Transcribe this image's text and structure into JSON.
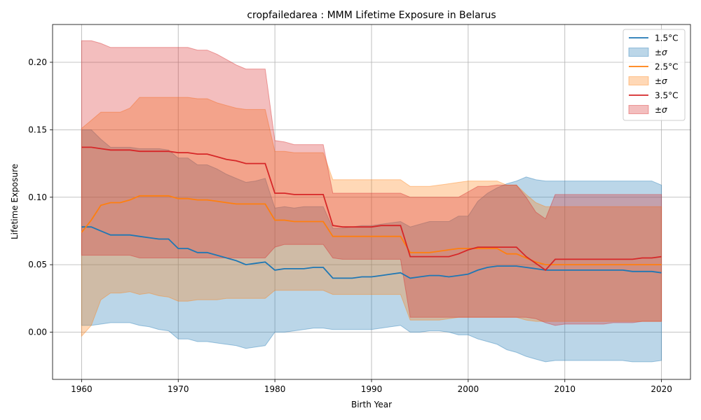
{
  "chart_data": {
    "type": "line",
    "title": "cropfailedarea : MMM Lifetime Exposure in Belarus",
    "xlabel": "Birth Year",
    "ylabel": "Lifetime Exposure",
    "xlim": [
      1957,
      2023
    ],
    "ylim": [
      -0.035,
      0.228
    ],
    "xticks": [
      1960,
      1970,
      1980,
      1990,
      2000,
      2010,
      2020
    ],
    "yticks": [
      0.0,
      0.05,
      0.1,
      0.15,
      0.2
    ],
    "ytick_labels": [
      "0.00",
      "0.05",
      "0.10",
      "0.15",
      "0.20"
    ],
    "grid": true,
    "legend_position": "top-right",
    "x": [
      1960,
      1961,
      1962,
      1963,
      1964,
      1965,
      1966,
      1967,
      1968,
      1969,
      1970,
      1971,
      1972,
      1973,
      1974,
      1975,
      1976,
      1977,
      1978,
      1979,
      1980,
      1981,
      1982,
      1983,
      1984,
      1985,
      1986,
      1987,
      1988,
      1989,
      1990,
      1991,
      1992,
      1993,
      1994,
      1995,
      1996,
      1997,
      1998,
      1999,
      2000,
      2001,
      2002,
      2003,
      2004,
      2005,
      2006,
      2007,
      2008,
      2009,
      2010,
      2011,
      2012,
      2013,
      2014,
      2015,
      2016,
      2017,
      2018,
      2019,
      2020
    ],
    "series": [
      {
        "name": "1.5°C",
        "band_label": "±σ",
        "color": "#1f77b4",
        "values": [
          0.078,
          0.078,
          0.075,
          0.072,
          0.072,
          0.072,
          0.071,
          0.07,
          0.069,
          0.069,
          0.062,
          0.062,
          0.059,
          0.059,
          0.057,
          0.055,
          0.053,
          0.05,
          0.051,
          0.052,
          0.046,
          0.047,
          0.047,
          0.047,
          0.048,
          0.048,
          0.04,
          0.04,
          0.04,
          0.041,
          0.041,
          0.042,
          0.043,
          0.044,
          0.04,
          0.041,
          0.042,
          0.042,
          0.041,
          0.042,
          0.043,
          0.046,
          0.048,
          0.049,
          0.049,
          0.049,
          0.048,
          0.047,
          0.046,
          0.046,
          0.046,
          0.046,
          0.046,
          0.046,
          0.046,
          0.046,
          0.046,
          0.045,
          0.045,
          0.045,
          0.044
        ],
        "lower": [
          0.005,
          0.005,
          0.006,
          0.007,
          0.007,
          0.007,
          0.005,
          0.004,
          0.002,
          0.001,
          -0.005,
          -0.005,
          -0.007,
          -0.007,
          -0.008,
          -0.009,
          -0.01,
          -0.012,
          -0.011,
          -0.01,
          0.0,
          0.0,
          0.001,
          0.002,
          0.003,
          0.003,
          0.002,
          0.002,
          0.002,
          0.002,
          0.002,
          0.003,
          0.004,
          0.005,
          0.0,
          0.0,
          0.001,
          0.001,
          0.0,
          -0.002,
          -0.002,
          -0.005,
          -0.007,
          -0.009,
          -0.013,
          -0.015,
          -0.018,
          -0.02,
          -0.022,
          -0.021,
          -0.021,
          -0.021,
          -0.021,
          -0.021,
          -0.021,
          -0.021,
          -0.021,
          -0.022,
          -0.022,
          -0.022,
          -0.021
        ],
        "upper": [
          0.15,
          0.15,
          0.143,
          0.137,
          0.137,
          0.137,
          0.136,
          0.136,
          0.136,
          0.135,
          0.129,
          0.129,
          0.124,
          0.124,
          0.121,
          0.117,
          0.114,
          0.111,
          0.112,
          0.114,
          0.092,
          0.093,
          0.092,
          0.093,
          0.093,
          0.093,
          0.077,
          0.077,
          0.078,
          0.079,
          0.079,
          0.08,
          0.081,
          0.082,
          0.078,
          0.08,
          0.082,
          0.082,
          0.082,
          0.086,
          0.086,
          0.097,
          0.103,
          0.107,
          0.11,
          0.112,
          0.115,
          0.113,
          0.112,
          0.112,
          0.112,
          0.112,
          0.112,
          0.112,
          0.112,
          0.112,
          0.112,
          0.112,
          0.112,
          0.112,
          0.109
        ]
      },
      {
        "name": "2.5°C",
        "band_label": "±σ",
        "color": "#ff7f0e",
        "values": [
          0.074,
          0.083,
          0.094,
          0.096,
          0.096,
          0.098,
          0.101,
          0.101,
          0.101,
          0.101,
          0.099,
          0.099,
          0.098,
          0.098,
          0.097,
          0.096,
          0.095,
          0.095,
          0.095,
          0.095,
          0.083,
          0.083,
          0.082,
          0.082,
          0.082,
          0.082,
          0.071,
          0.071,
          0.071,
          0.071,
          0.071,
          0.071,
          0.071,
          0.071,
          0.059,
          0.059,
          0.059,
          0.06,
          0.061,
          0.062,
          0.062,
          0.062,
          0.062,
          0.062,
          0.058,
          0.058,
          0.055,
          0.052,
          0.05,
          0.05,
          0.05,
          0.05,
          0.05,
          0.05,
          0.05,
          0.05,
          0.05,
          0.05,
          0.05,
          0.05,
          0.05
        ],
        "lower": [
          -0.003,
          0.005,
          0.024,
          0.029,
          0.029,
          0.03,
          0.028,
          0.029,
          0.027,
          0.026,
          0.023,
          0.023,
          0.024,
          0.024,
          0.024,
          0.025,
          0.025,
          0.025,
          0.025,
          0.025,
          0.031,
          0.031,
          0.031,
          0.031,
          0.031,
          0.031,
          0.028,
          0.028,
          0.028,
          0.028,
          0.028,
          0.028,
          0.028,
          0.028,
          0.009,
          0.009,
          0.009,
          0.009,
          0.01,
          0.011,
          0.011,
          0.011,
          0.011,
          0.011,
          0.011,
          0.011,
          0.009,
          0.008,
          0.008,
          0.008,
          0.008,
          0.008,
          0.008,
          0.008,
          0.008,
          0.008,
          0.008,
          0.008,
          0.008,
          0.008,
          0.008
        ],
        "upper": [
          0.151,
          0.157,
          0.163,
          0.163,
          0.163,
          0.166,
          0.174,
          0.174,
          0.174,
          0.174,
          0.174,
          0.174,
          0.173,
          0.173,
          0.17,
          0.168,
          0.166,
          0.165,
          0.165,
          0.165,
          0.134,
          0.134,
          0.133,
          0.133,
          0.133,
          0.133,
          0.113,
          0.113,
          0.113,
          0.113,
          0.113,
          0.113,
          0.113,
          0.113,
          0.108,
          0.108,
          0.108,
          0.109,
          0.11,
          0.111,
          0.112,
          0.112,
          0.112,
          0.112,
          0.109,
          0.109,
          0.102,
          0.096,
          0.093,
          0.093,
          0.093,
          0.093,
          0.093,
          0.093,
          0.093,
          0.093,
          0.093,
          0.093,
          0.093,
          0.093,
          0.093
        ]
      },
      {
        "name": "3.5°C",
        "band_label": "±σ",
        "color": "#d62728",
        "values": [
          0.137,
          0.137,
          0.136,
          0.135,
          0.135,
          0.135,
          0.134,
          0.134,
          0.134,
          0.134,
          0.133,
          0.133,
          0.132,
          0.132,
          0.13,
          0.128,
          0.127,
          0.125,
          0.125,
          0.125,
          0.103,
          0.103,
          0.102,
          0.102,
          0.102,
          0.102,
          0.079,
          0.078,
          0.078,
          0.078,
          0.078,
          0.079,
          0.079,
          0.079,
          0.056,
          0.056,
          0.056,
          0.056,
          0.056,
          0.058,
          0.061,
          0.063,
          0.063,
          0.063,
          0.063,
          0.063,
          0.056,
          0.051,
          0.046,
          0.054,
          0.054,
          0.054,
          0.054,
          0.054,
          0.054,
          0.054,
          0.054,
          0.054,
          0.055,
          0.055,
          0.056
        ],
        "lower": [
          0.057,
          0.057,
          0.057,
          0.057,
          0.057,
          0.057,
          0.055,
          0.055,
          0.055,
          0.055,
          0.055,
          0.055,
          0.055,
          0.055,
          0.055,
          0.055,
          0.055,
          0.055,
          0.055,
          0.055,
          0.063,
          0.065,
          0.065,
          0.065,
          0.065,
          0.065,
          0.055,
          0.054,
          0.054,
          0.054,
          0.054,
          0.054,
          0.054,
          0.054,
          0.011,
          0.011,
          0.011,
          0.011,
          0.011,
          0.011,
          0.011,
          0.011,
          0.011,
          0.011,
          0.011,
          0.011,
          0.011,
          0.01,
          0.007,
          0.005,
          0.006,
          0.006,
          0.006,
          0.006,
          0.006,
          0.007,
          0.007,
          0.007,
          0.008,
          0.008,
          0.008
        ],
        "upper": [
          0.216,
          0.216,
          0.214,
          0.211,
          0.211,
          0.211,
          0.211,
          0.211,
          0.211,
          0.211,
          0.211,
          0.211,
          0.209,
          0.209,
          0.206,
          0.202,
          0.198,
          0.195,
          0.195,
          0.195,
          0.142,
          0.141,
          0.139,
          0.139,
          0.139,
          0.139,
          0.103,
          0.103,
          0.103,
          0.103,
          0.103,
          0.103,
          0.103,
          0.103,
          0.1,
          0.1,
          0.1,
          0.1,
          0.1,
          0.1,
          0.104,
          0.108,
          0.108,
          0.109,
          0.109,
          0.109,
          0.1,
          0.089,
          0.084,
          0.102,
          0.102,
          0.102,
          0.102,
          0.102,
          0.102,
          0.102,
          0.102,
          0.102,
          0.102,
          0.102,
          0.102
        ]
      }
    ]
  }
}
